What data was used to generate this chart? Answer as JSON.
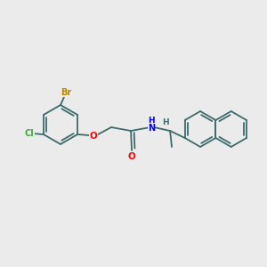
{
  "background_color": "#ebebeb",
  "bond_color": "#3d6b6b",
  "atom_colors": {
    "O": "#ff0000",
    "N": "#0000ff",
    "Br": "#b8860b",
    "Cl": "#3daa3d",
    "C": "#3d6b6b",
    "H": "#3d6b6b"
  },
  "figsize": [
    3.0,
    3.0
  ],
  "dpi": 100,
  "lw": 1.3,
  "ring_r": 22,
  "nap_r": 20
}
